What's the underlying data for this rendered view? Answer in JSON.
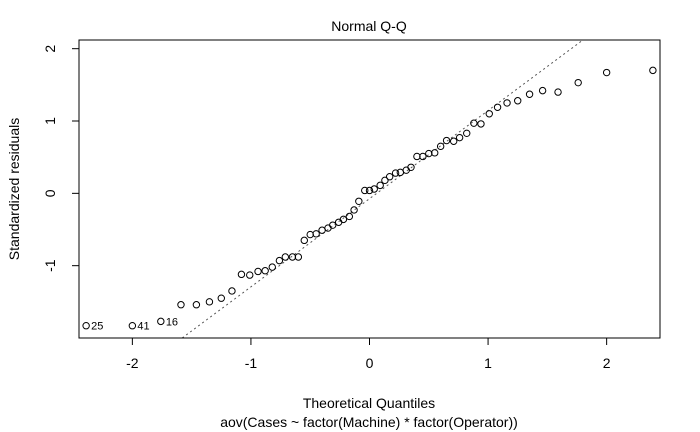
{
  "chart_data": {
    "type": "scatter",
    "title": "Normal Q-Q",
    "xlabel": "Theoretical Quantiles",
    "subtitle": "aov(Cases ~ factor(Machine) * factor(Operator))",
    "ylabel": "Standardized residuals",
    "xlim": [
      -2.45,
      2.45
    ],
    "ylim": [
      -2.0,
      2.12
    ],
    "x_ticks": [
      -2,
      -1,
      0,
      1,
      2
    ],
    "y_ticks": [
      -1,
      0,
      1,
      2
    ],
    "x_tick_labels": [
      "-2",
      "-1",
      "0",
      "1",
      "2"
    ],
    "y_tick_labels": [
      "-1",
      "0",
      "1",
      "2"
    ],
    "grid": false,
    "reference_line": {
      "style": "dotted",
      "color": "#555555",
      "points": [
        [
          -1.58,
          -2.0
        ],
        [
          1.8,
          2.12
        ]
      ]
    },
    "points": [
      {
        "x": -2.39,
        "y": -1.83
      },
      {
        "x": -2.0,
        "y": -1.83
      },
      {
        "x": -1.76,
        "y": -1.77
      },
      {
        "x": -1.59,
        "y": -1.54
      },
      {
        "x": -1.46,
        "y": -1.54
      },
      {
        "x": -1.35,
        "y": -1.5
      },
      {
        "x": -1.25,
        "y": -1.45
      },
      {
        "x": -1.16,
        "y": -1.35
      },
      {
        "x": -1.08,
        "y": -1.12
      },
      {
        "x": -1.01,
        "y": -1.13
      },
      {
        "x": -0.94,
        "y": -1.08
      },
      {
        "x": -0.88,
        "y": -1.07
      },
      {
        "x": -0.82,
        "y": -1.02
      },
      {
        "x": -0.76,
        "y": -0.93
      },
      {
        "x": -0.71,
        "y": -0.88
      },
      {
        "x": -0.65,
        "y": -0.88
      },
      {
        "x": -0.6,
        "y": -0.88
      },
      {
        "x": -0.55,
        "y": -0.65
      },
      {
        "x": -0.5,
        "y": -0.57
      },
      {
        "x": -0.45,
        "y": -0.56
      },
      {
        "x": -0.4,
        "y": -0.51
      },
      {
        "x": -0.35,
        "y": -0.48
      },
      {
        "x": -0.31,
        "y": -0.44
      },
      {
        "x": -0.26,
        "y": -0.4
      },
      {
        "x": -0.22,
        "y": -0.36
      },
      {
        "x": -0.17,
        "y": -0.32
      },
      {
        "x": -0.13,
        "y": -0.23
      },
      {
        "x": -0.09,
        "y": -0.11
      },
      {
        "x": -0.04,
        "y": 0.04
      },
      {
        "x": 0.0,
        "y": 0.04
      },
      {
        "x": 0.04,
        "y": 0.06
      },
      {
        "x": 0.09,
        "y": 0.11
      },
      {
        "x": 0.13,
        "y": 0.18
      },
      {
        "x": 0.17,
        "y": 0.23
      },
      {
        "x": 0.22,
        "y": 0.28
      },
      {
        "x": 0.26,
        "y": 0.29
      },
      {
        "x": 0.31,
        "y": 0.32
      },
      {
        "x": 0.35,
        "y": 0.36
      },
      {
        "x": 0.4,
        "y": 0.51
      },
      {
        "x": 0.45,
        "y": 0.51
      },
      {
        "x": 0.5,
        "y": 0.55
      },
      {
        "x": 0.55,
        "y": 0.56
      },
      {
        "x": 0.6,
        "y": 0.65
      },
      {
        "x": 0.65,
        "y": 0.73
      },
      {
        "x": 0.71,
        "y": 0.72
      },
      {
        "x": 0.76,
        "y": 0.77
      },
      {
        "x": 0.82,
        "y": 0.83
      },
      {
        "x": 0.88,
        "y": 0.97
      },
      {
        "x": 0.94,
        "y": 0.96
      },
      {
        "x": 1.01,
        "y": 1.1
      },
      {
        "x": 1.08,
        "y": 1.19
      },
      {
        "x": 1.16,
        "y": 1.25
      },
      {
        "x": 1.25,
        "y": 1.28
      },
      {
        "x": 1.35,
        "y": 1.37
      },
      {
        "x": 1.46,
        "y": 1.42
      },
      {
        "x": 1.59,
        "y": 1.4
      },
      {
        "x": 1.76,
        "y": 1.53
      },
      {
        "x": 2.0,
        "y": 1.67
      },
      {
        "x": 2.39,
        "y": 1.7
      }
    ],
    "point_labels": [
      {
        "text": "25",
        "x": -2.39,
        "y": -1.83
      },
      {
        "text": "41",
        "x": -2.0,
        "y": -1.83
      },
      {
        "text": "16",
        "x": -1.76,
        "y": -1.77
      }
    ]
  }
}
